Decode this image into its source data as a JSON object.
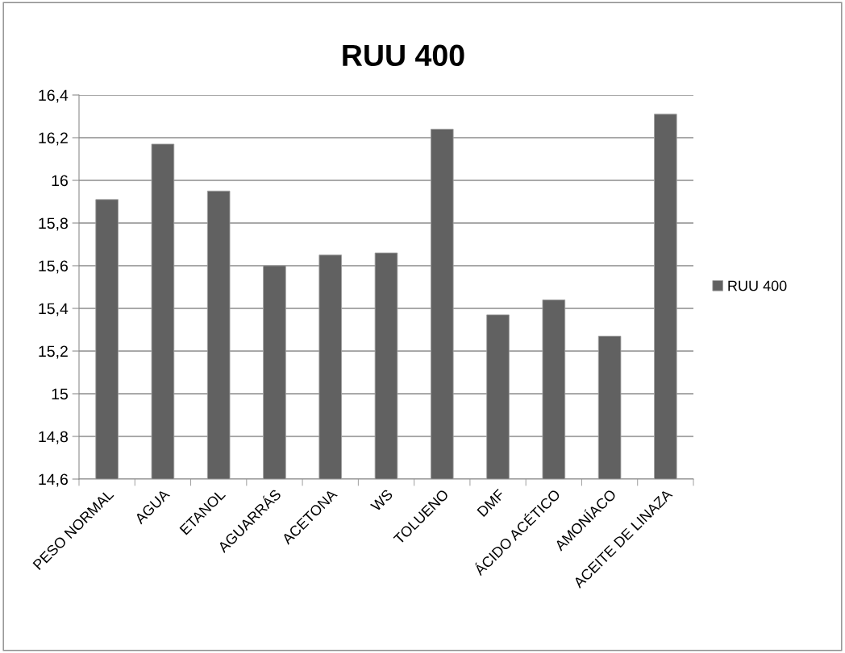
{
  "chart_data": {
    "type": "bar",
    "title": "RUU 400",
    "categories": [
      "PESO NORMAL",
      "AGUA",
      "ETANOL",
      "AGUARRÁS",
      "ACETONA",
      "WS",
      "TOLUENO",
      "DMF",
      "ÁCIDO ACÉTICO",
      "AMONÍACO",
      "ACEITE DE LINAZA"
    ],
    "series": [
      {
        "name": "RUU 400",
        "color": "#616161",
        "values": [
          15.91,
          16.17,
          15.95,
          15.6,
          15.65,
          15.66,
          16.24,
          15.37,
          15.44,
          15.27,
          16.31
        ]
      }
    ],
    "ylim": [
      14.6,
      16.4
    ],
    "yticks": [
      {
        "value": 14.6,
        "label": "14,6"
      },
      {
        "value": 14.8,
        "label": "14,8"
      },
      {
        "value": 15,
        "label": "15"
      },
      {
        "value": 15.2,
        "label": "15,2"
      },
      {
        "value": 15.4,
        "label": "15,4"
      },
      {
        "value": 15.6,
        "label": "15,6"
      },
      {
        "value": 15.8,
        "label": "15,8"
      },
      {
        "value": 16,
        "label": "16"
      },
      {
        "value": 16.2,
        "label": "16,2"
      },
      {
        "value": 16.4,
        "label": "16,4"
      }
    ],
    "grid": "y",
    "legend": "right"
  }
}
